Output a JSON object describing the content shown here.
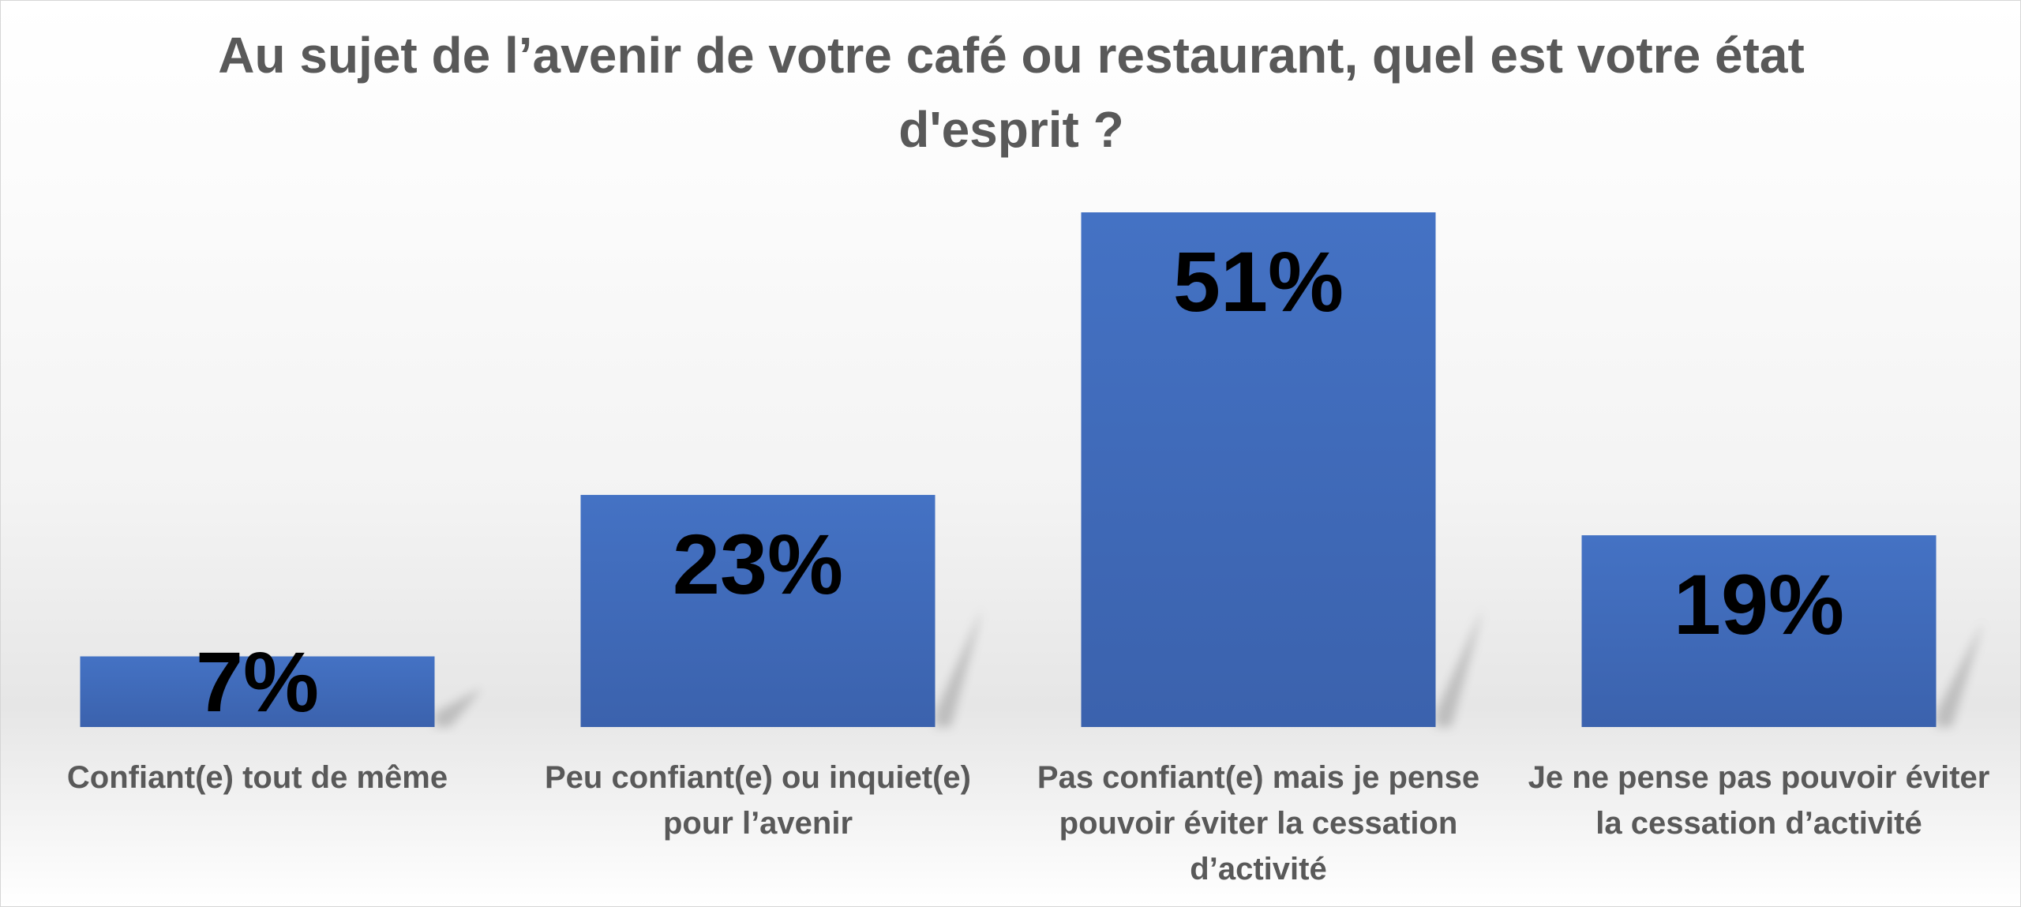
{
  "chart_data": {
    "type": "bar",
    "title": "Au sujet de l’avenir de votre café ou restaurant, quel est votre état d'esprit ?",
    "categories": [
      "Confiant(e) tout de même",
      "Peu confiant(e) ou inquiet(e) pour l’avenir",
      "Pas confiant(e) mais je pense pouvoir éviter la cessation d’activité",
      "Je ne pense pas pouvoir éviter la cessation d’activité"
    ],
    "values": [
      7,
      23,
      51,
      19
    ],
    "data_labels": [
      "7%",
      "23%",
      "51%",
      "19%"
    ],
    "unit": "%",
    "xlabel": "",
    "ylabel": "",
    "ylim": [
      0,
      51
    ],
    "grid": false,
    "legend": "none",
    "bar_color": "#4472C4",
    "label_color": "#000000"
  }
}
